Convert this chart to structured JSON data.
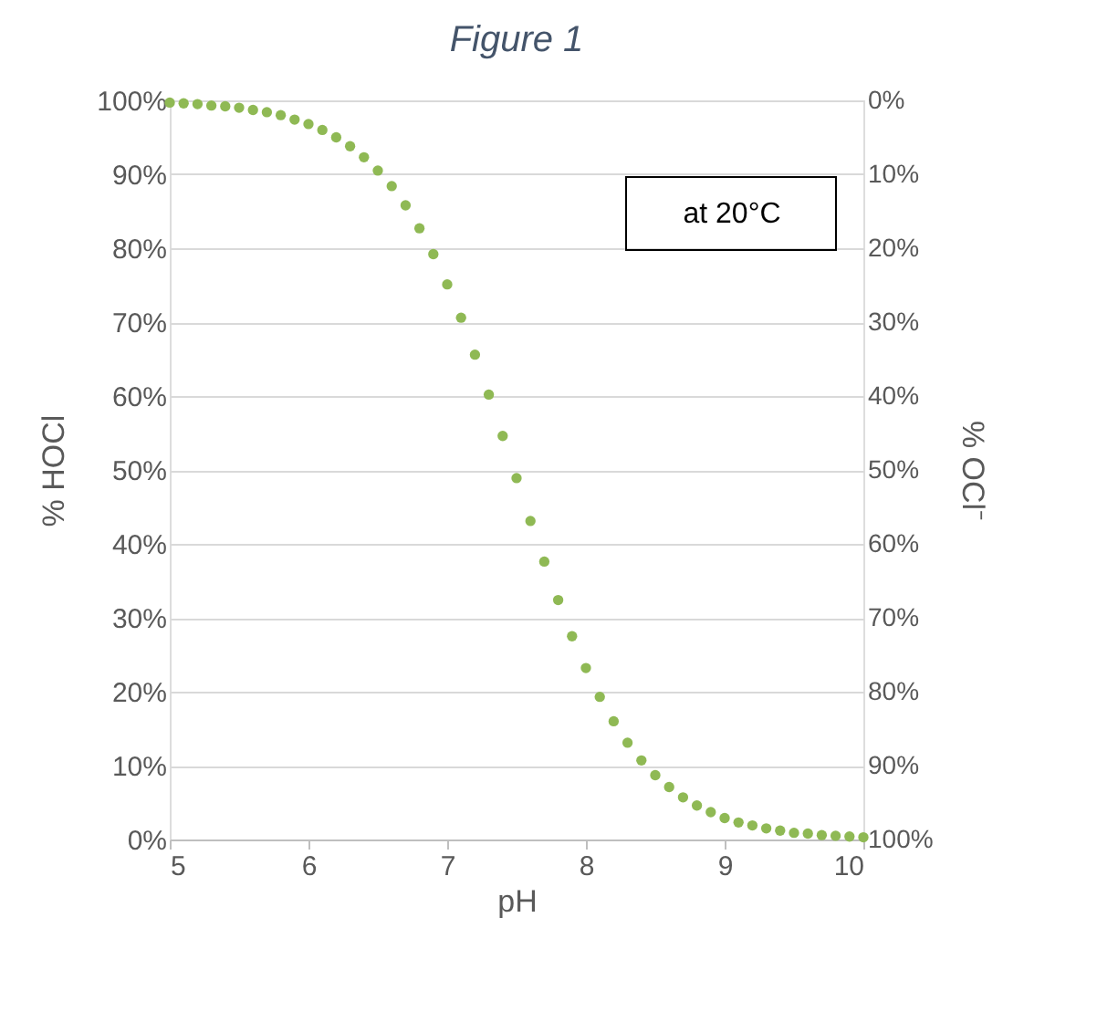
{
  "chart_data": {
    "type": "scatter",
    "title": "Figure 1",
    "xlabel": "pH",
    "ylabel": "% HOCl",
    "y2label": "% OCl⁻",
    "annotations": [
      "at 20°C"
    ],
    "x": [
      5.0,
      5.1,
      5.2,
      5.3,
      5.4,
      5.5,
      5.6,
      5.7,
      5.8,
      5.9,
      6.0,
      6.1,
      6.2,
      6.3,
      6.4,
      6.5,
      6.6,
      6.7,
      6.8,
      6.9,
      7.0,
      7.1,
      7.2,
      7.3,
      7.4,
      7.5,
      7.6,
      7.7,
      7.8,
      7.9,
      8.0,
      8.1,
      8.2,
      8.3,
      8.4,
      8.5,
      8.6,
      8.7,
      8.8,
      8.9,
      9.0,
      9.1,
      9.2,
      9.3,
      9.4,
      9.5,
      9.6,
      9.7,
      9.8,
      9.9,
      10.0
    ],
    "series": [
      {
        "color": "#8fb954",
        "values": [
          99.7,
          99.6,
          99.5,
          99.3,
          99.2,
          99.0,
          98.7,
          98.4,
          98.0,
          97.4,
          96.8,
          96.0,
          95.0,
          93.8,
          92.3,
          90.5,
          88.4,
          85.8,
          82.7,
          79.2,
          75.1,
          70.6,
          65.6,
          60.2,
          54.6,
          48.9,
          43.1,
          37.6,
          32.4,
          27.5,
          23.2,
          19.3,
          16.0,
          13.1,
          10.7,
          8.7,
          7.1,
          5.7,
          4.6,
          3.7,
          2.9,
          2.3,
          1.9,
          1.5,
          1.2,
          0.9,
          0.8,
          0.6,
          0.5,
          0.4,
          0.3
        ]
      }
    ],
    "xlim": [
      5,
      10
    ],
    "xticks": [
      5,
      6,
      7,
      8,
      9,
      10
    ],
    "ylim": [
      0,
      100
    ],
    "yticks": [
      {
        "value": 0,
        "label": "0%"
      },
      {
        "value": 10,
        "label": "10%"
      },
      {
        "value": 20,
        "label": "20%"
      },
      {
        "value": 30,
        "label": "30%"
      },
      {
        "value": 40,
        "label": "40%"
      },
      {
        "value": 50,
        "label": "50%"
      },
      {
        "value": 60,
        "label": "60%"
      },
      {
        "value": 70,
        "label": "70%"
      },
      {
        "value": 80,
        "label": "80%"
      },
      {
        "value": 90,
        "label": "90%"
      },
      {
        "value": 100,
        "label": "100%"
      }
    ],
    "y2lim": [
      100,
      0
    ],
    "y2ticks": [
      {
        "value": 0,
        "label": "0%"
      },
      {
        "value": 10,
        "label": "10%"
      },
      {
        "value": 20,
        "label": "20%"
      },
      {
        "value": 30,
        "label": "30%"
      },
      {
        "value": 40,
        "label": "40%"
      },
      {
        "value": 50,
        "label": "50%"
      },
      {
        "value": 60,
        "label": "60%"
      },
      {
        "value": 70,
        "label": "70%"
      },
      {
        "value": 80,
        "label": "80%"
      },
      {
        "value": 90,
        "label": "90%"
      },
      {
        "value": 100,
        "label": "100%"
      }
    ],
    "grid": "y",
    "marker": "circle"
  }
}
